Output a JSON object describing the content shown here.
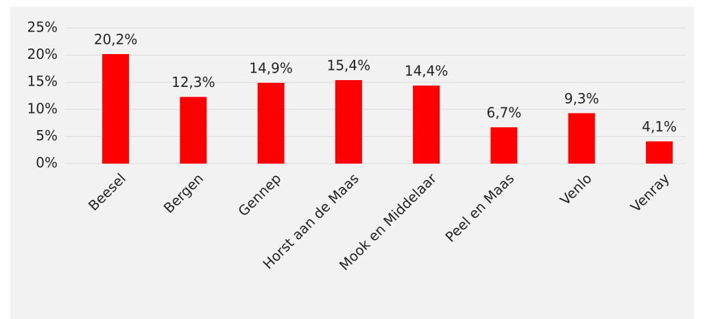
{
  "chart_data": {
    "type": "bar",
    "categories": [
      "Beesel",
      "Bergen",
      "Gennep",
      "Horst aan de Maas",
      "Mook en Middelaar",
      "Peel en Maas",
      "Venlo",
      "Venray"
    ],
    "values": [
      20.2,
      12.3,
      14.9,
      15.4,
      14.4,
      6.7,
      9.3,
      4.1
    ],
    "value_labels": [
      "20,2%",
      "12,3%",
      "14,9%",
      "15,4%",
      "14,4%",
      "6,7%",
      "9,3%",
      "4,1%"
    ],
    "color": "#ff0000",
    "ylim": [
      0,
      25
    ],
    "yticks": [
      {
        "value": 0,
        "label": "0%"
      },
      {
        "value": 5,
        "label": "5%"
      },
      {
        "value": 10,
        "label": "10%"
      },
      {
        "value": 15,
        "label": "15%"
      },
      {
        "value": 20,
        "label": "20%"
      },
      {
        "value": 25,
        "label": "25%"
      }
    ],
    "grid": true
  }
}
